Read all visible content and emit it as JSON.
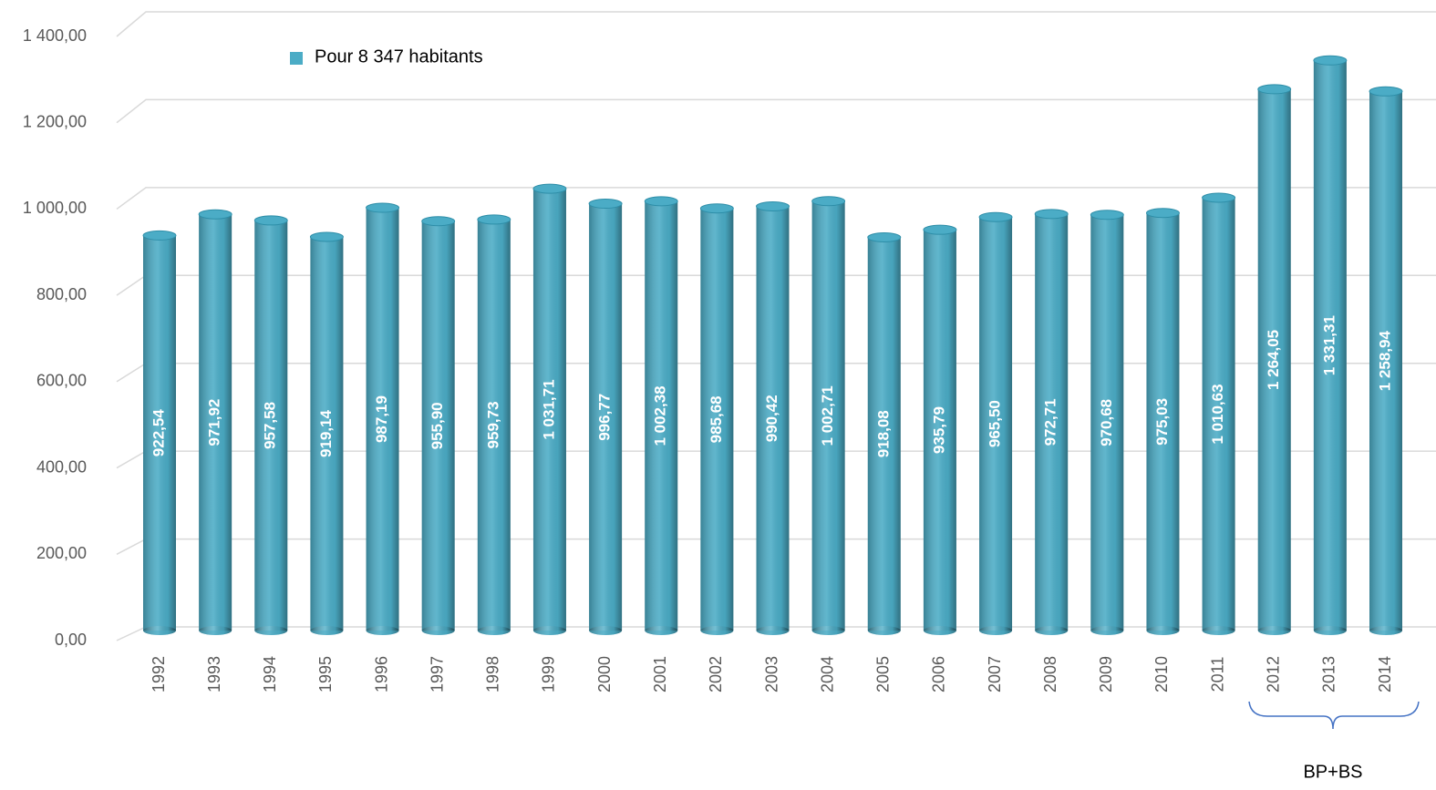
{
  "chart_data": {
    "type": "bar",
    "categories": [
      "1992",
      "1993",
      "1994",
      "1995",
      "1996",
      "1997",
      "1998",
      "1999",
      "2000",
      "2001",
      "2002",
      "2003",
      "2004",
      "2005",
      "2006",
      "2007",
      "2008",
      "2009",
      "2010",
      "2011",
      "2012",
      "2013",
      "2014"
    ],
    "series": [
      {
        "name": "Pour 8 347 habitants",
        "color": "#4bacc6",
        "values": [
          922.54,
          971.92,
          957.58,
          919.14,
          987.19,
          955.9,
          959.73,
          1031.71,
          996.77,
          1002.38,
          985.68,
          990.42,
          1002.71,
          918.08,
          935.79,
          965.5,
          972.71,
          970.68,
          975.03,
          1010.63,
          1264.05,
          1331.31,
          1258.94
        ],
        "value_labels": [
          "922,54",
          "971,92",
          "957,58",
          "919,14",
          "987,19",
          "955,90",
          "959,73",
          "1 031,71",
          "996,77",
          "1 002,38",
          "985,68",
          "990,42",
          "1 002,71",
          "918,08",
          "935,79",
          "965,50",
          "972,71",
          "970,68",
          "975,03",
          "1 010,63",
          "1 264,05",
          "1 331,31",
          "1 258,94"
        ]
      }
    ],
    "ylim": [
      0,
      1400
    ],
    "yticks": [
      {
        "value": 0,
        "label": "0,00"
      },
      {
        "value": 200,
        "label": "200,00"
      },
      {
        "value": 400,
        "label": "400,00"
      },
      {
        "value": 600,
        "label": "600,00"
      },
      {
        "value": 800,
        "label": "800,00"
      },
      {
        "value": 1000,
        "label": "1 000,00"
      },
      {
        "value": 1200,
        "label": "1 200,00"
      },
      {
        "value": 1400,
        "label": "1 400,00"
      }
    ],
    "grid": true,
    "annotation": "BP+BS"
  }
}
